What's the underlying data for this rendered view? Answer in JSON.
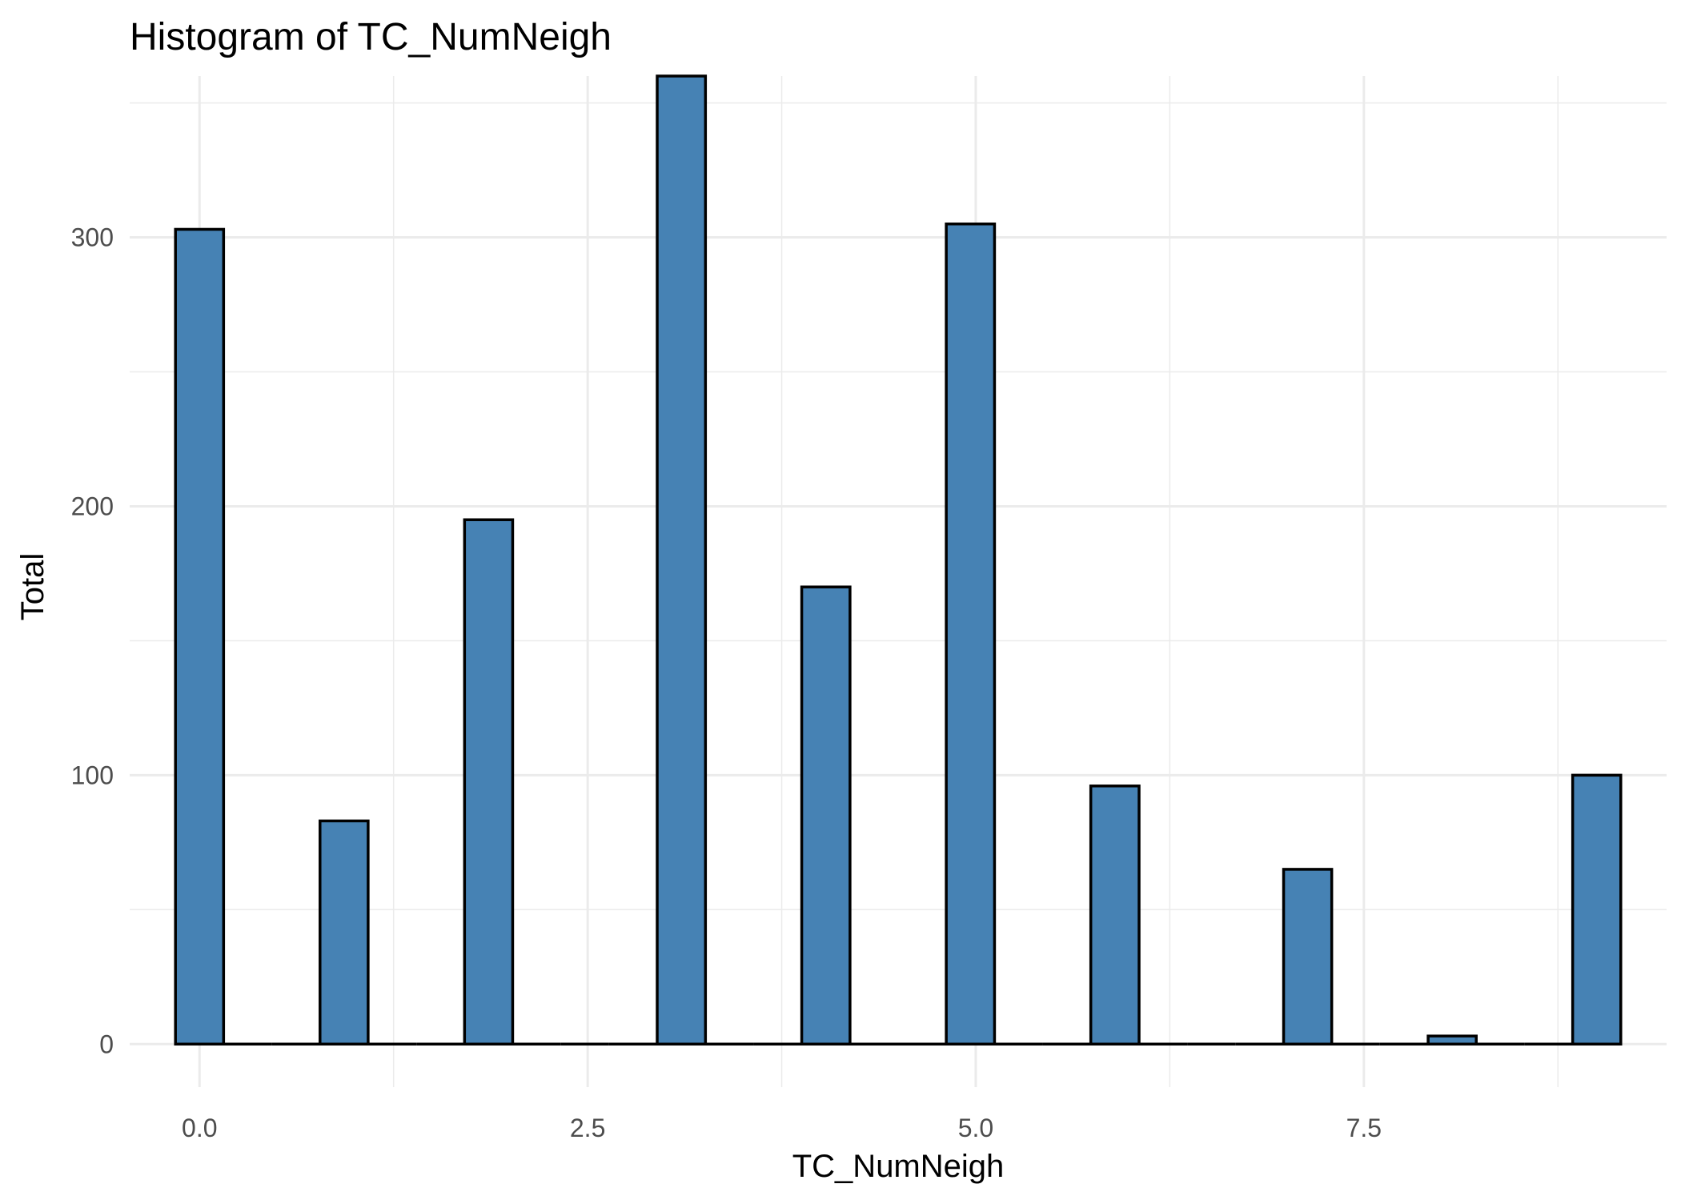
{
  "chart_data": {
    "type": "bar",
    "title": "Histogram of  TC_NumNeigh",
    "xlabel": "TC_NumNeigh",
    "ylabel": "Total",
    "xlim": [
      -0.45,
      9.45
    ],
    "ylim": [
      -16,
      360
    ],
    "x_ticks": [
      {
        "value": 0,
        "label": "0.0"
      },
      {
        "value": 2.5,
        "label": "2.5"
      },
      {
        "value": 5,
        "label": "5.0"
      },
      {
        "value": 7.5,
        "label": "7.5"
      }
    ],
    "y_ticks": [
      {
        "value": 0,
        "label": "0"
      },
      {
        "value": 100,
        "label": "100"
      },
      {
        "value": 200,
        "label": "200"
      },
      {
        "value": 300,
        "label": "300"
      }
    ],
    "grid": true,
    "bar_fill": "#4682b4",
    "bar_outline": "#000000",
    "bins": [
      {
        "xmin": -0.155,
        "xmax": 0.155,
        "count": 303
      },
      {
        "xmin": 0.155,
        "xmax": 0.466,
        "count": 0
      },
      {
        "xmin": 0.466,
        "xmax": 0.776,
        "count": 0
      },
      {
        "xmin": 0.776,
        "xmax": 1.086,
        "count": 83
      },
      {
        "xmin": 1.086,
        "xmax": 1.397,
        "count": 0
      },
      {
        "xmin": 1.397,
        "xmax": 1.707,
        "count": 0
      },
      {
        "xmin": 1.707,
        "xmax": 2.017,
        "count": 195
      },
      {
        "xmin": 2.017,
        "xmax": 2.328,
        "count": 0
      },
      {
        "xmin": 2.328,
        "xmax": 2.638,
        "count": 0
      },
      {
        "xmin": 2.638,
        "xmax": 2.948,
        "count": 0
      },
      {
        "xmin": 2.948,
        "xmax": 3.259,
        "count": 360
      },
      {
        "xmin": 3.259,
        "xmax": 3.569,
        "count": 0
      },
      {
        "xmin": 3.569,
        "xmax": 3.879,
        "count": 0
      },
      {
        "xmin": 3.879,
        "xmax": 4.19,
        "count": 170
      },
      {
        "xmin": 4.19,
        "xmax": 4.5,
        "count": 0
      },
      {
        "xmin": 4.5,
        "xmax": 4.81,
        "count": 0
      },
      {
        "xmin": 4.81,
        "xmax": 5.121,
        "count": 305
      },
      {
        "xmin": 5.121,
        "xmax": 5.431,
        "count": 0
      },
      {
        "xmin": 5.431,
        "xmax": 5.741,
        "count": 0
      },
      {
        "xmin": 5.741,
        "xmax": 6.052,
        "count": 96
      },
      {
        "xmin": 6.052,
        "xmax": 6.362,
        "count": 0
      },
      {
        "xmin": 6.362,
        "xmax": 6.672,
        "count": 0
      },
      {
        "xmin": 6.672,
        "xmax": 6.983,
        "count": 0
      },
      {
        "xmin": 6.983,
        "xmax": 7.293,
        "count": 65
      },
      {
        "xmin": 7.293,
        "xmax": 7.603,
        "count": 0
      },
      {
        "xmin": 7.603,
        "xmax": 7.914,
        "count": 0
      },
      {
        "xmin": 7.914,
        "xmax": 8.224,
        "count": 3
      },
      {
        "xmin": 8.224,
        "xmax": 8.534,
        "count": 0
      },
      {
        "xmin": 8.534,
        "xmax": 8.845,
        "count": 0
      },
      {
        "xmin": 8.845,
        "xmax": 9.155,
        "count": 100
      }
    ]
  }
}
